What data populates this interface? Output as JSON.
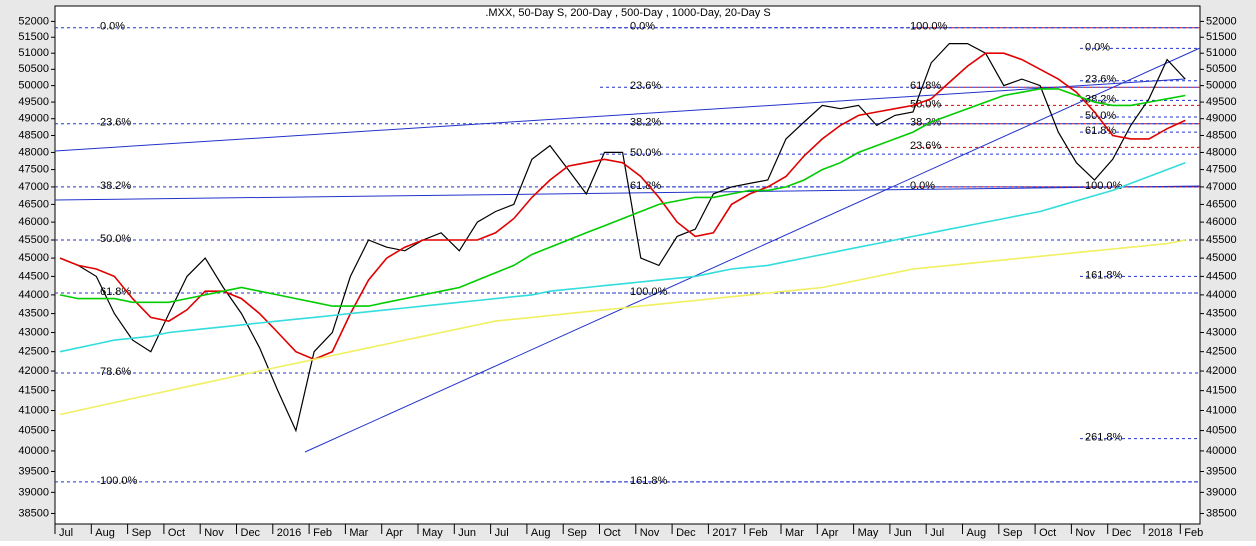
{
  "chart_data": {
    "type": "line",
    "title": ".MXX, 50-Day S, 200-Day , 500-Day , 1000-Day, 20-Day S",
    "log_scale": true,
    "ylim": [
      38300,
      52300
    ],
    "yticks": [
      38500,
      39000,
      39500,
      40000,
      40500,
      41000,
      41500,
      42000,
      42500,
      43000,
      43500,
      44000,
      44500,
      45000,
      45500,
      46000,
      46500,
      47000,
      47500,
      48000,
      48500,
      49000,
      49500,
      50000,
      50500,
      51000,
      51500,
      52000
    ],
    "categories": [
      "Jul",
      null,
      "Aug",
      null,
      "Sep",
      null,
      "Oct",
      null,
      "Nov",
      null,
      "Dec",
      null,
      "2016",
      null,
      "Feb",
      null,
      "Mar",
      null,
      "Apr",
      null,
      "May",
      null,
      "Jun",
      null,
      "Jul",
      null,
      "Aug",
      null,
      "Sep",
      null,
      "Oct",
      null,
      "Nov",
      null,
      "Dec",
      null,
      "2017",
      null,
      "Feb",
      null,
      "Mar",
      null,
      "Apr",
      null,
      "May",
      null,
      "Jun",
      null,
      "Jul",
      null,
      "Aug",
      null,
      "Sep",
      null,
      "Oct",
      null,
      "Nov",
      null,
      "Dec",
      null,
      "2018",
      null,
      "Feb"
    ],
    "series": [
      {
        "color": "#000000",
        "values": [
          45000,
          44800,
          44500,
          43500,
          42800,
          42500,
          43500,
          44500,
          45000,
          44200,
          43500,
          42600,
          41500,
          40500,
          42500,
          43000,
          44500,
          45500,
          45300,
          45200,
          45500,
          45700,
          45200,
          46000,
          46300,
          46500,
          47800,
          48200,
          47500,
          46800,
          48000,
          48000,
          45000,
          44800,
          45600,
          45800,
          46800,
          47000,
          47100,
          47200,
          48400,
          48900,
          49400,
          49300,
          49400,
          48800,
          49100,
          49200,
          50700,
          51300,
          51300,
          51000,
          50000,
          50200,
          50000,
          48600,
          47700,
          47200,
          47800,
          48800,
          49600,
          50800,
          50200
        ]
      },
      {
        "color": "#e00000",
        "values": [
          45000,
          44800,
          44700,
          44500,
          43900,
          43400,
          43300,
          43600,
          44100,
          44100,
          43900,
          43500,
          43000,
          42500,
          42300,
          42500,
          43500,
          44400,
          45000,
          45300,
          45500,
          45500,
          45500,
          45500,
          45700,
          46100,
          46700,
          47200,
          47600,
          47700,
          47800,
          47700,
          47300,
          46700,
          46000,
          45600,
          45700,
          46500,
          46800,
          47000,
          47300,
          47900,
          48400,
          48800,
          49100,
          49200,
          49300,
          49400,
          49600,
          50100,
          50600,
          51000,
          51000,
          50800,
          50500,
          50200,
          49800,
          49200,
          48500,
          48400,
          48400,
          48700,
          48950
        ]
      },
      {
        "color": "#00cc00",
        "values": [
          44000,
          43900,
          43900,
          43900,
          43800,
          43800,
          43800,
          43900,
          44000,
          44100,
          44200,
          44100,
          44000,
          43900,
          43800,
          43700,
          43700,
          43700,
          43800,
          43900,
          44000,
          44100,
          44200,
          44400,
          44600,
          44800,
          45100,
          45300,
          45500,
          45700,
          45900,
          46100,
          46300,
          46500,
          46600,
          46700,
          46700,
          46800,
          46900,
          46900,
          47000,
          47200,
          47500,
          47700,
          48000,
          48200,
          48400,
          48600,
          48900,
          49100,
          49300,
          49500,
          49700,
          49800,
          49900,
          49900,
          49700,
          49500,
          49400,
          49400,
          49500,
          49600,
          49700
        ]
      },
      {
        "color": "#33dddd",
        "values": [
          42500,
          42600,
          42700,
          42800,
          42850,
          42900,
          43000,
          43050,
          43100,
          43150,
          43200,
          43250,
          43300,
          43350,
          43400,
          43450,
          43500,
          43550,
          43600,
          43650,
          43700,
          43750,
          43800,
          43850,
          43900,
          43950,
          44000,
          44100,
          44150,
          44200,
          44250,
          44300,
          44350,
          44400,
          44450,
          44500,
          44600,
          44700,
          44750,
          44800,
          44900,
          45000,
          45100,
          45200,
          45300,
          45400,
          45500,
          45600,
          45700,
          45800,
          45900,
          46000,
          46100,
          46200,
          46300,
          46450,
          46600,
          46750,
          46900,
          47100,
          47300,
          47500,
          47700
        ]
      },
      {
        "color": "#f0f060",
        "values": [
          40900,
          41000,
          41100,
          41200,
          41300,
          41400,
          41500,
          41600,
          41700,
          41800,
          41900,
          42000,
          42100,
          42200,
          42300,
          42400,
          42500,
          42600,
          42700,
          42800,
          42900,
          43000,
          43100,
          43200,
          43300,
          43350,
          43400,
          43450,
          43500,
          43550,
          43600,
          43650,
          43700,
          43750,
          43800,
          43850,
          43900,
          43950,
          44000,
          44050,
          44100,
          44150,
          44200,
          44300,
          44400,
          44500,
          44600,
          44700,
          44750,
          44800,
          44850,
          44900,
          44950,
          45000,
          45050,
          45100,
          45150,
          45200,
          45250,
          45300,
          45350,
          45400,
          45500
        ]
      }
    ],
    "fib_groups": [
      {
        "color": "#2233cc",
        "levels": [
          {
            "label": "0.0%",
            "value": 51800
          },
          {
            "label": "23.6%",
            "value": 48850
          },
          {
            "label": "38.2%",
            "value": 47000
          },
          {
            "label": "50.0%",
            "value": 45500
          },
          {
            "label": "61.8%",
            "value": 44050
          },
          {
            "label": "78.6%",
            "value": 41950
          },
          {
            "label": "100.0%",
            "value": 39250
          }
        ]
      },
      {
        "color": "#2233cc",
        "levels": [
          {
            "label": "0.0%",
            "value": 51800
          },
          {
            "label": "23.6%",
            "value": 49950
          },
          {
            "label": "38.2%",
            "value": 48850
          },
          {
            "label": "50.0%",
            "value": 47950
          },
          {
            "label": "61.8%",
            "value": 47000
          },
          {
            "label": "100.0%",
            "value": 44050
          },
          {
            "label": "161.8%",
            "value": 39250
          }
        ]
      },
      {
        "color": "#e00000",
        "levels": [
          {
            "label": "100.0%",
            "value": 51800
          },
          {
            "label": "61.8%",
            "value": 49950
          },
          {
            "label": "50.0%",
            "value": 49400
          },
          {
            "label": "38.2%",
            "value": 48850
          },
          {
            "label": "23.6%",
            "value": 48150
          },
          {
            "label": "0.0%",
            "value": 47000
          }
        ]
      },
      {
        "color": "#2233cc",
        "levels": [
          {
            "label": "0.0%",
            "value": 51150
          },
          {
            "label": "23.6%",
            "value": 50150
          },
          {
            "label": "38.2%",
            "value": 49550
          },
          {
            "label": "50.0%",
            "value": 49050
          },
          {
            "label": "61.8%",
            "value": 48600
          },
          {
            "label": "100.0%",
            "value": 47000
          },
          {
            "label": "161.8%",
            "value": 44500
          },
          {
            "label": "261.8%",
            "value": 40300
          }
        ]
      }
    ]
  }
}
